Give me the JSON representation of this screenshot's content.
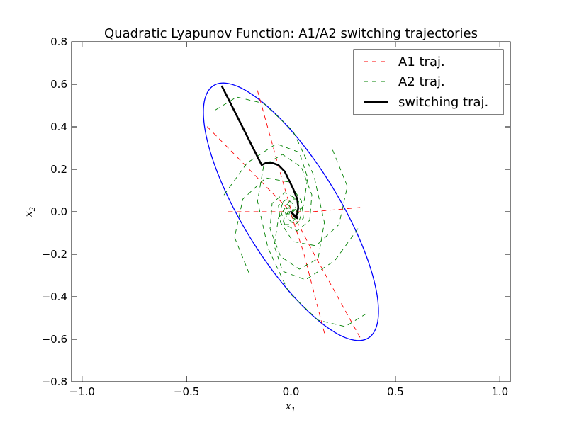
{
  "chart_data": {
    "type": "line",
    "title": "Quadratic Lyapunov Function: A1/A2 switching trajectories",
    "xlabel_base": "x",
    "xlabel_sub": "1",
    "ylabel_base": "x",
    "ylabel_sub": "2",
    "xlim": [
      -1.05,
      1.05
    ],
    "ylim": [
      -0.8,
      0.8
    ],
    "xticks": [
      -1.0,
      -0.5,
      0.0,
      0.5,
      1.0
    ],
    "xtick_labels": [
      "−1.0",
      "−0.5",
      "0.0",
      "0.5",
      "1.0"
    ],
    "yticks": [
      -0.8,
      -0.6,
      -0.4,
      -0.2,
      0.0,
      0.2,
      0.4,
      0.6,
      0.8
    ],
    "ytick_labels": [
      "−0.8",
      "−0.6",
      "−0.4",
      "−0.2",
      "0.0",
      "0.2",
      "0.4",
      "0.6",
      "0.8"
    ],
    "grid": false,
    "legend_position": "top-right",
    "colors": {
      "a1": "#ff0000",
      "a2": "#008000",
      "switching": "#000000",
      "level_set": "#0000ff"
    },
    "legend": [
      {
        "label": "A1 traj.",
        "color": "#ff0000",
        "style": "dashed"
      },
      {
        "label": "A2 traj.",
        "color": "#008000",
        "style": "dashed"
      },
      {
        "label": "switching traj.",
        "color": "#000000",
        "style": "solid"
      }
    ],
    "level_set": {
      "shape": "ellipse",
      "center": [
        0.0,
        0.0
      ],
      "semi_axes": [
        0.7,
        0.23
      ],
      "rotation_deg": -58,
      "color": "#0000ff"
    },
    "series": [
      {
        "name": "A1 traj.",
        "style": "dashed",
        "color": "#ff0000",
        "paths": [
          {
            "x": [
              -0.4,
              -0.14,
              -0.01
            ],
            "y": [
              0.4,
              0.14,
              0.01
            ]
          },
          {
            "x": [
              0.33,
              0.1,
              0.01
            ],
            "y": [
              -0.59,
              -0.18,
              -0.01
            ]
          },
          {
            "x": [
              -0.16,
              -0.05,
              0.0
            ],
            "y": [
              0.57,
              0.18,
              0.01
            ]
          },
          {
            "x": [
              0.16,
              0.06,
              0.0
            ],
            "y": [
              -0.57,
              -0.19,
              -0.01
            ]
          },
          {
            "x": [
              0.33,
              0.1,
              0.01
            ],
            "y": [
              0.02,
              0.0,
              0.0
            ]
          },
          {
            "x": [
              -0.3,
              -0.09,
              -0.01
            ],
            "y": [
              0.0,
              0.0,
              0.0
            ]
          }
        ]
      },
      {
        "name": "A2 traj.",
        "style": "dashed",
        "color": "#008000",
        "paths": [
          {
            "x": [
              -0.36,
              -0.26,
              -0.13,
              0.01,
              0.11,
              0.16,
              0.13,
              0.04,
              -0.05,
              -0.1,
              -0.09,
              -0.03,
              0.03,
              0.05,
              0.04,
              0.01,
              -0.01,
              0.0
            ],
            "y": [
              0.48,
              0.54,
              0.51,
              0.38,
              0.17,
              -0.05,
              -0.22,
              -0.27,
              -0.21,
              -0.08,
              0.04,
              0.09,
              0.06,
              -0.01,
              -0.04,
              -0.03,
              0.0,
              0.0
            ]
          },
          {
            "x": [
              0.36,
              0.26,
              0.13,
              -0.01,
              -0.11,
              -0.16,
              -0.13,
              -0.04,
              0.05,
              0.1,
              0.09,
              0.03,
              -0.03,
              -0.05,
              -0.04,
              -0.01,
              0.01,
              0.0
            ],
            "y": [
              -0.48,
              -0.54,
              -0.51,
              -0.38,
              -0.17,
              0.05,
              0.22,
              0.27,
              0.21,
              0.08,
              -0.04,
              -0.09,
              -0.06,
              0.01,
              0.04,
              0.03,
              0.0,
              0.0
            ]
          },
          {
            "x": [
              -0.32,
              -0.21,
              -0.07,
              0.04,
              0.08,
              0.06,
              0.0,
              -0.04,
              -0.03,
              0.0,
              0.02,
              0.01,
              0.0
            ],
            "y": [
              0.08,
              0.23,
              0.32,
              0.28,
              0.16,
              0.03,
              -0.06,
              -0.06,
              -0.02,
              0.01,
              0.01,
              0.0,
              0.0
            ]
          },
          {
            "x": [
              0.32,
              0.21,
              0.07,
              -0.04,
              -0.08,
              -0.06,
              0.0,
              0.04,
              0.03,
              0.0,
              -0.02,
              -0.01,
              0.0
            ],
            "y": [
              -0.08,
              -0.23,
              -0.32,
              -0.28,
              -0.16,
              -0.03,
              0.06,
              0.06,
              0.02,
              -0.01,
              -0.01,
              0.0,
              0.0
            ]
          },
          {
            "x": [
              0.2,
              0.27,
              0.23,
              0.12,
              0.01,
              -0.05,
              -0.06,
              -0.02,
              0.02,
              0.03,
              0.01,
              0.0
            ],
            "y": [
              0.29,
              0.12,
              -0.06,
              -0.16,
              -0.14,
              -0.05,
              0.03,
              0.06,
              0.03,
              -0.01,
              -0.02,
              0.0
            ]
          },
          {
            "x": [
              -0.2,
              -0.27,
              -0.23,
              -0.12,
              -0.01,
              0.05,
              0.06,
              0.02,
              -0.02,
              -0.03,
              -0.01,
              0.0
            ],
            "y": [
              -0.29,
              -0.12,
              0.06,
              0.16,
              0.14,
              0.05,
              -0.03,
              -0.06,
              -0.03,
              0.01,
              0.02,
              0.0
            ]
          }
        ]
      },
      {
        "name": "switching traj.",
        "style": "solid",
        "color": "#000000",
        "paths": [
          {
            "x": [
              -0.33,
              -0.14,
              -0.12,
              -0.09,
              -0.06,
              -0.03,
              -0.01,
              0.01,
              0.03,
              0.035,
              0.03,
              0.02,
              0.01,
              0.0,
              0.02,
              0.03,
              0.025
            ],
            "y": [
              0.59,
              0.22,
              0.23,
              0.23,
              0.22,
              0.19,
              0.15,
              0.11,
              0.06,
              0.02,
              -0.01,
              -0.02,
              -0.01,
              0.0,
              -0.025,
              -0.03,
              -0.015
            ]
          }
        ]
      }
    ]
  }
}
